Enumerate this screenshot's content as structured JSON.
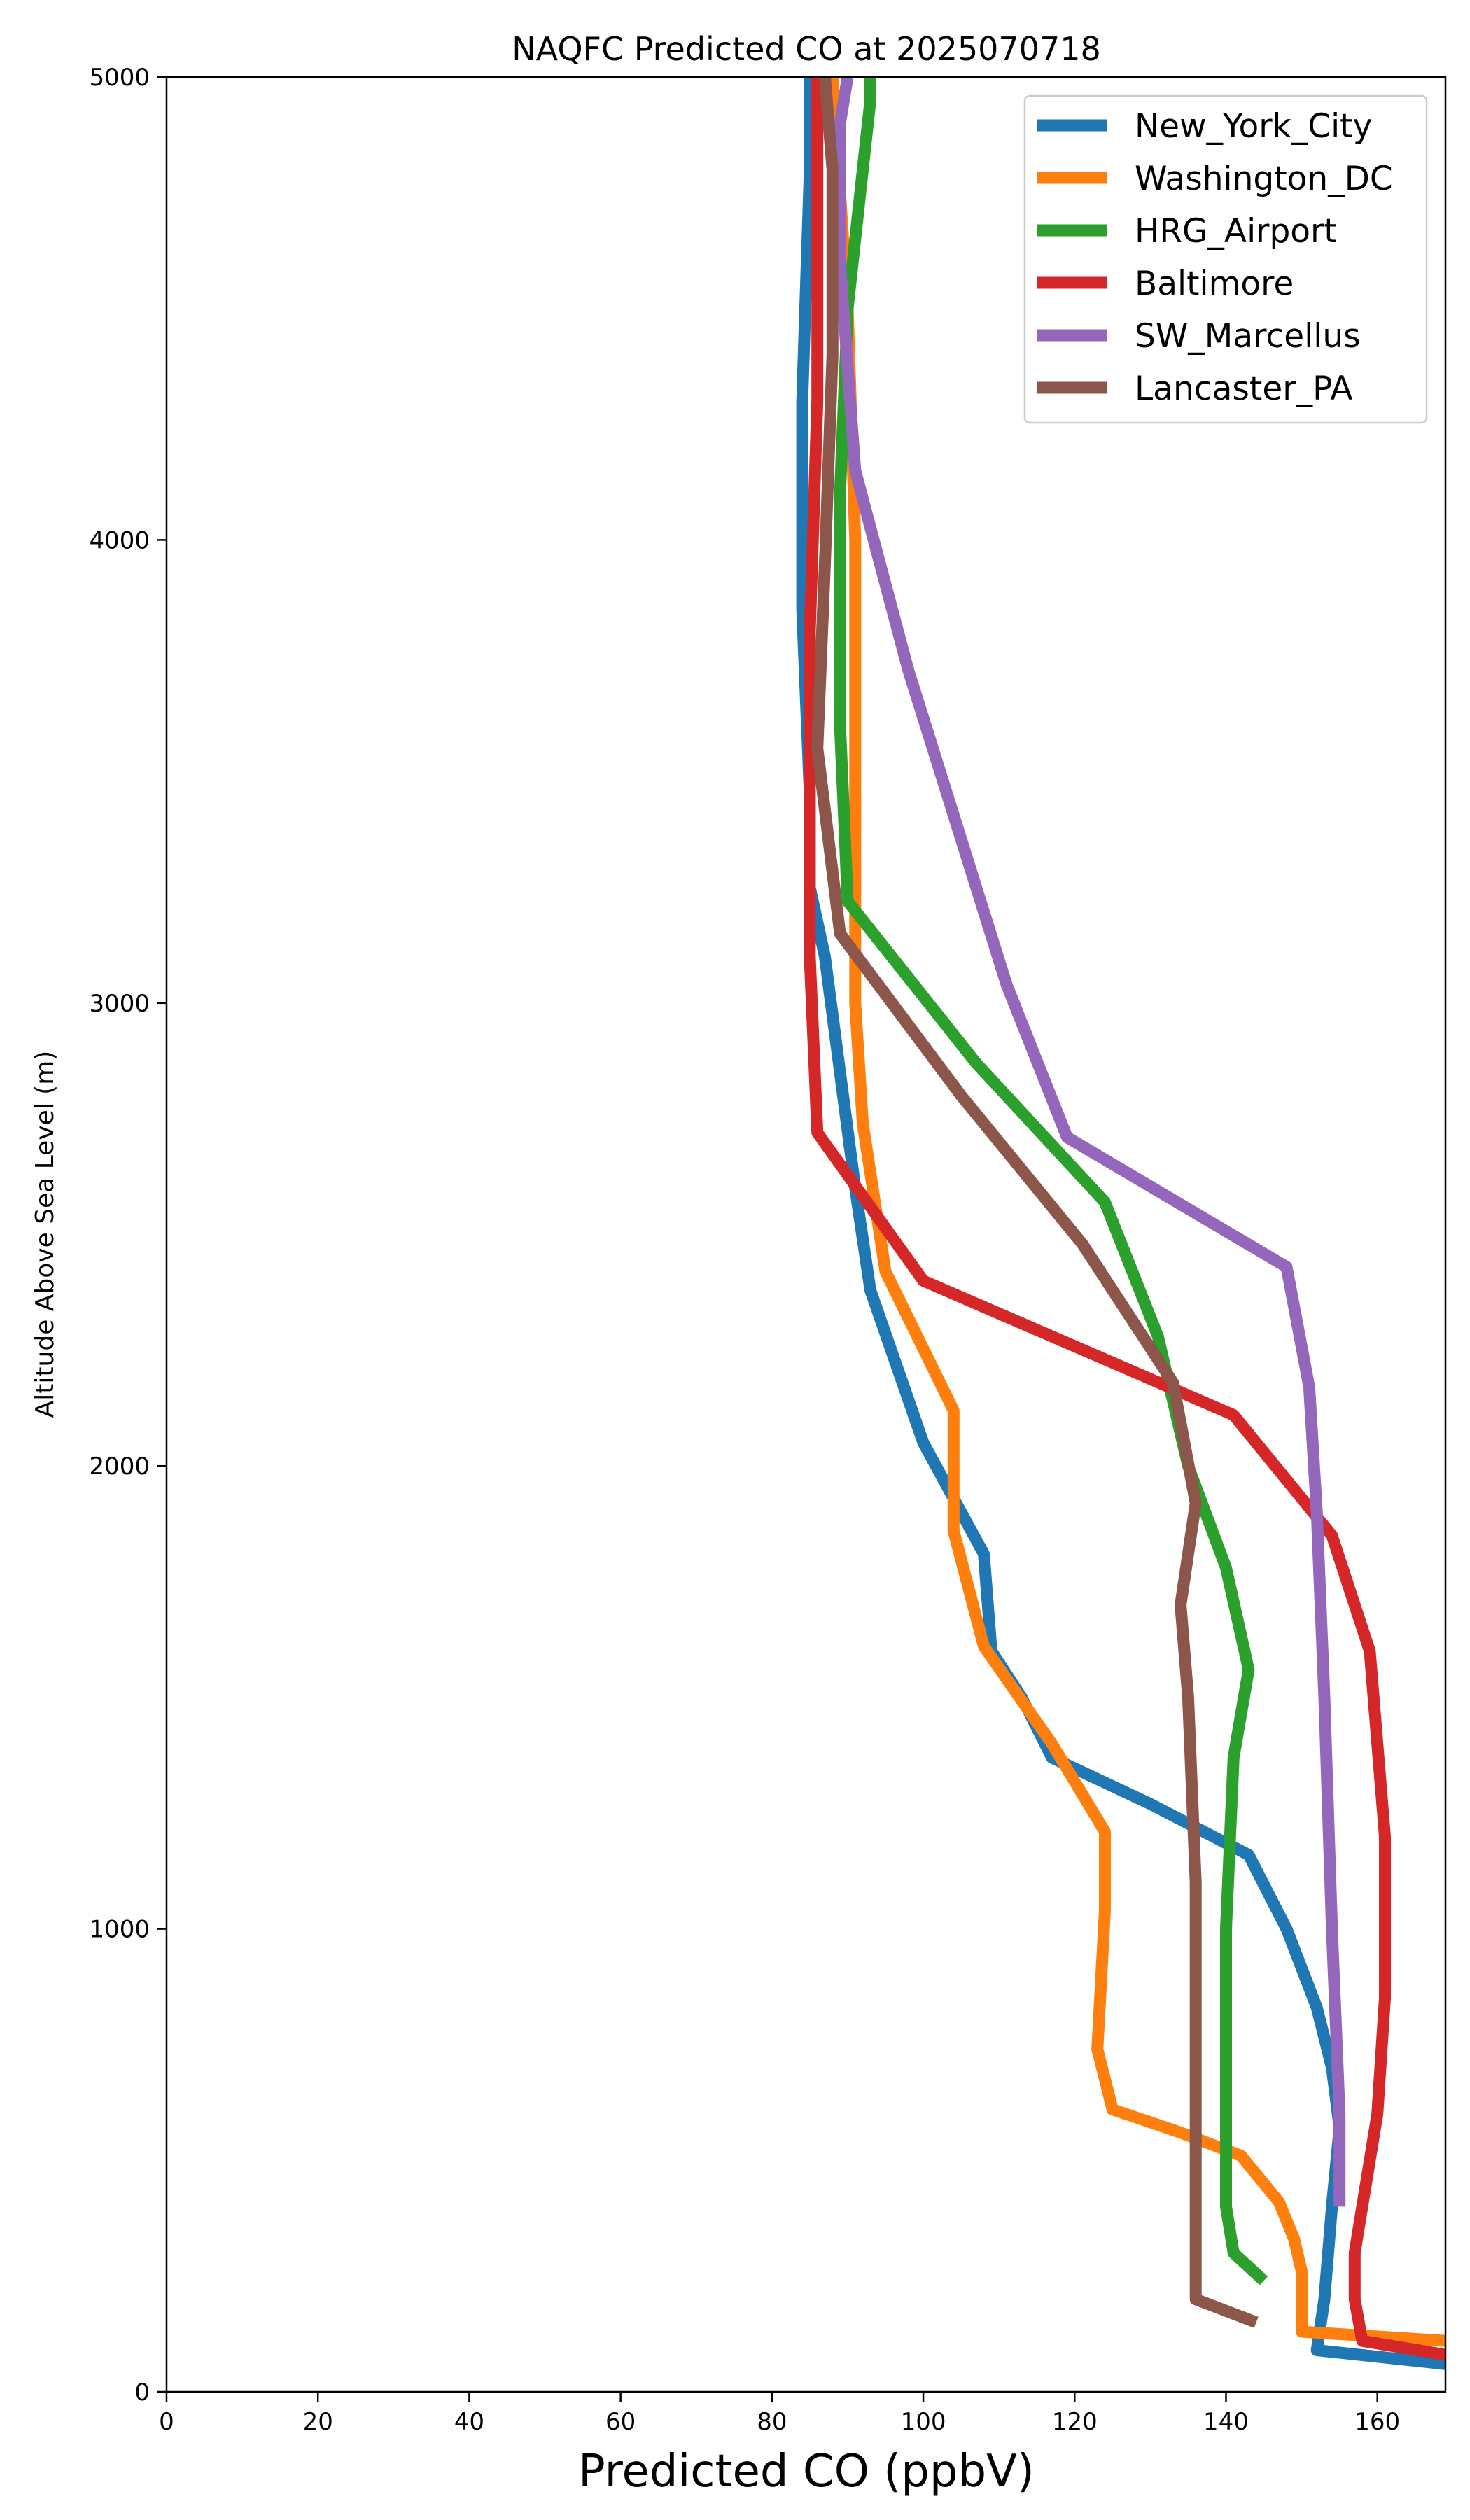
{
  "chart_data": {
    "type": "line",
    "title": "NAQFC Predicted CO at 2025070718",
    "xlabel": "Predicted CO (ppbV)",
    "ylabel": "Altitude Above Sea Level (m)",
    "xlim": [
      0,
      169
    ],
    "ylim": [
      0,
      5000
    ],
    "xticks": [
      0,
      20,
      40,
      60,
      80,
      100,
      120,
      140,
      160
    ],
    "yticks": [
      0,
      1000,
      2000,
      3000,
      4000,
      5000
    ],
    "grid": false,
    "legend": "top-right",
    "series": [
      {
        "name": "New_York_City",
        "color": "#1f77b4",
        "points": [
          [
            169,
            60
          ],
          [
            152,
            90
          ],
          [
            153,
            200
          ],
          [
            154,
            400
          ],
          [
            155,
            570
          ],
          [
            154,
            700
          ],
          [
            152,
            830
          ],
          [
            148,
            1000
          ],
          [
            143,
            1160
          ],
          [
            130,
            1270
          ],
          [
            117,
            1370
          ],
          [
            113,
            1500
          ],
          [
            109,
            1600
          ],
          [
            108,
            1810
          ],
          [
            100,
            2050
          ],
          [
            93,
            2380
          ],
          [
            91,
            2600
          ],
          [
            89,
            2850
          ],
          [
            87,
            3100
          ],
          [
            85,
            3250
          ],
          [
            85,
            3450
          ],
          [
            84,
            3850
          ],
          [
            84,
            4300
          ],
          [
            85,
            4800
          ],
          [
            85,
            5000
          ]
        ]
      },
      {
        "name": "Washington_DC",
        "color": "#ff7f0e",
        "points": [
          [
            169,
            110
          ],
          [
            150,
            130
          ],
          [
            150,
            260
          ],
          [
            149,
            330
          ],
          [
            147,
            410
          ],
          [
            142,
            510
          ],
          [
            134,
            560
          ],
          [
            125,
            610
          ],
          [
            123,
            740
          ],
          [
            124,
            1040
          ],
          [
            124,
            1210
          ],
          [
            117,
            1400
          ],
          [
            108,
            1610
          ],
          [
            104,
            1860
          ],
          [
            104,
            2120
          ],
          [
            95,
            2420
          ],
          [
            92,
            2740
          ],
          [
            91,
            3000
          ],
          [
            91,
            3500
          ],
          [
            91,
            4000
          ],
          [
            90,
            4500
          ],
          [
            88,
            5000
          ]
        ]
      },
      {
        "name": "HRG_Airport",
        "color": "#2ca02c",
        "points": [
          [
            145,
            240
          ],
          [
            141,
            300
          ],
          [
            140,
            400
          ],
          [
            140,
            600
          ],
          [
            140,
            1000
          ],
          [
            141,
            1370
          ],
          [
            143,
            1560
          ],
          [
            140,
            1780
          ],
          [
            135,
            2000
          ],
          [
            131,
            2280
          ],
          [
            124,
            2570
          ],
          [
            107,
            2870
          ],
          [
            90,
            3220
          ],
          [
            89,
            3600
          ],
          [
            89,
            4100
          ],
          [
            90,
            4500
          ],
          [
            93,
            4950
          ],
          [
            93,
            5000
          ]
        ]
      },
      {
        "name": "Baltimore",
        "color": "#d62728",
        "points": [
          [
            169,
            80
          ],
          [
            158,
            110
          ],
          [
            157,
            200
          ],
          [
            157,
            300
          ],
          [
            158,
            400
          ],
          [
            160,
            600
          ],
          [
            161,
            850
          ],
          [
            161,
            1200
          ],
          [
            160,
            1400
          ],
          [
            159,
            1600
          ],
          [
            154,
            1850
          ],
          [
            141,
            2110
          ],
          [
            100,
            2400
          ],
          [
            86,
            2720
          ],
          [
            85,
            3100
          ],
          [
            85,
            3500
          ],
          [
            85,
            3800
          ],
          [
            86,
            4300
          ],
          [
            86,
            5000
          ]
        ]
      },
      {
        "name": "SW_Marcellus",
        "color": "#9467bd",
        "points": [
          [
            155,
            400
          ],
          [
            155,
            600
          ],
          [
            154,
            1000
          ],
          [
            153,
            1500
          ],
          [
            152,
            1900
          ],
          [
            151,
            2170
          ],
          [
            148,
            2430
          ],
          [
            119,
            2710
          ],
          [
            111,
            3040
          ],
          [
            98,
            3720
          ],
          [
            91,
            4150
          ],
          [
            89,
            4600
          ],
          [
            89,
            4900
          ],
          [
            90,
            5000
          ]
        ]
      },
      {
        "name": "Lancaster_PA",
        "color": "#8c564b",
        "points": [
          [
            144,
            150
          ],
          [
            136,
            200
          ],
          [
            136,
            300
          ],
          [
            136,
            500
          ],
          [
            136,
            800
          ],
          [
            136,
            1100
          ],
          [
            135,
            1500
          ],
          [
            134,
            1700
          ],
          [
            136,
            1920
          ],
          [
            133,
            2180
          ],
          [
            121,
            2480
          ],
          [
            105,
            2800
          ],
          [
            89,
            3150
          ],
          [
            86,
            3550
          ],
          [
            87,
            3950
          ],
          [
            88,
            4400
          ],
          [
            88,
            4800
          ],
          [
            87,
            5000
          ]
        ]
      }
    ]
  }
}
